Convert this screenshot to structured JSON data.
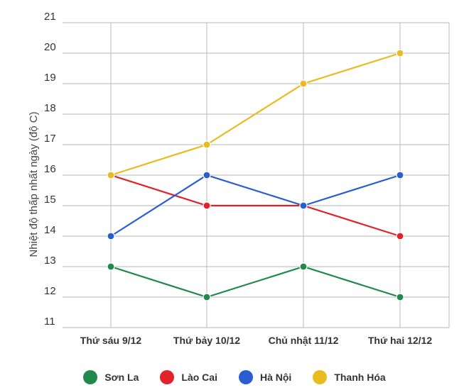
{
  "chart_data": {
    "type": "line",
    "title": "",
    "xlabel": "",
    "ylabel": "Nhiệt độ thấp nhất ngày (độ C)",
    "categories": [
      "Thứ sáu 9/12",
      "Thứ bảy 10/12",
      "Chủ nhật 11/12",
      "Thứ hai 12/12"
    ],
    "ylim": [
      11,
      21
    ],
    "yticks": [
      11,
      12,
      13,
      14,
      15,
      16,
      17,
      18,
      19,
      20,
      21
    ],
    "grid": true,
    "legend_position": "bottom",
    "series": [
      {
        "name": "Sơn La",
        "color": "#1f8a4c",
        "values": [
          13,
          12,
          13,
          12
        ]
      },
      {
        "name": "Lào Cai",
        "color": "#e0222b",
        "values": [
          16,
          15,
          15,
          14
        ]
      },
      {
        "name": "Hà Nội",
        "color": "#2a5dd1",
        "values": [
          14,
          16,
          15,
          16
        ]
      },
      {
        "name": "Thanh Hóa",
        "color": "#e8bb1e",
        "values": [
          16,
          17,
          19,
          20
        ]
      }
    ]
  }
}
